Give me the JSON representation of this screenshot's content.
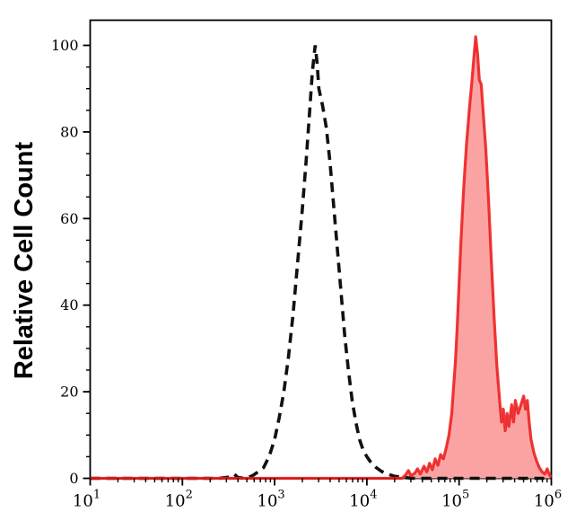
{
  "figure": {
    "background": "#ffffff",
    "description": "Flow cytometry overlay histogram with a black dashed control peak and a red filled sample peak"
  },
  "chart_data": {
    "type": "area",
    "subtype": "flow-cytometry-histogram",
    "title": "",
    "xlabel": "",
    "ylabel": "Relative Cell Count",
    "x_scale": "log10",
    "x_range_log10": [
      1,
      6
    ],
    "x_tick_base": "10",
    "x_tick_exponents": [
      1,
      2,
      3,
      4,
      5,
      6
    ],
    "x_tick_labels": [
      "10^1",
      "10^2",
      "10^3",
      "10^4",
      "10^5",
      "10^6"
    ],
    "y_range": [
      0,
      106
    ],
    "y_ticks": [
      0,
      20,
      40,
      60,
      80,
      100
    ],
    "y_minor_step": 5,
    "grid": false,
    "legend": "none",
    "frame": "full-box",
    "axis_color": "#000000",
    "series": [
      {
        "name": "control-dashed",
        "style": "dashed-line",
        "color": "#111111",
        "dash": [
          11,
          7
        ],
        "points": [
          [
            1.0,
            0
          ],
          [
            2.4,
            0
          ],
          [
            2.5,
            0.3
          ],
          [
            2.56,
            1.0
          ],
          [
            2.6,
            0.2
          ],
          [
            2.68,
            0
          ],
          [
            2.76,
            0.6
          ],
          [
            2.82,
            1.5
          ],
          [
            2.88,
            2.5
          ],
          [
            2.94,
            5
          ],
          [
            3.0,
            9
          ],
          [
            3.05,
            14
          ],
          [
            3.1,
            20
          ],
          [
            3.15,
            28
          ],
          [
            3.2,
            38
          ],
          [
            3.25,
            50
          ],
          [
            3.3,
            62
          ],
          [
            3.34,
            73
          ],
          [
            3.38,
            85
          ],
          [
            3.41,
            94
          ],
          [
            3.44,
            100
          ],
          [
            3.46,
            96
          ],
          [
            3.48,
            90
          ],
          [
            3.52,
            86
          ],
          [
            3.56,
            81
          ],
          [
            3.6,
            73
          ],
          [
            3.64,
            63
          ],
          [
            3.68,
            53
          ],
          [
            3.72,
            43
          ],
          [
            3.76,
            33
          ],
          [
            3.8,
            25
          ],
          [
            3.84,
            18
          ],
          [
            3.88,
            13
          ],
          [
            3.92,
            9
          ],
          [
            3.96,
            6.5
          ],
          [
            4.0,
            5
          ],
          [
            4.05,
            3.5
          ],
          [
            4.1,
            2.5
          ],
          [
            4.16,
            1.6
          ],
          [
            4.22,
            1.0
          ],
          [
            4.3,
            0.5
          ],
          [
            4.4,
            0.2
          ],
          [
            4.5,
            0
          ],
          [
            6.0,
            0
          ]
        ]
      },
      {
        "name": "sample-red-filled",
        "style": "filled-area",
        "stroke": "#ed1b1b",
        "fill": "#fba3a3",
        "points": [
          [
            1.0,
            0
          ],
          [
            4.38,
            0
          ],
          [
            4.42,
            0.8
          ],
          [
            4.45,
            1.8
          ],
          [
            4.48,
            0.6
          ],
          [
            4.52,
            1.2
          ],
          [
            4.55,
            2.2
          ],
          [
            4.58,
            1.0
          ],
          [
            4.62,
            2.8
          ],
          [
            4.65,
            1.5
          ],
          [
            4.68,
            3.5
          ],
          [
            4.71,
            2.0
          ],
          [
            4.74,
            4.5
          ],
          [
            4.77,
            3.0
          ],
          [
            4.8,
            5.5
          ],
          [
            4.83,
            4.5
          ],
          [
            4.86,
            7
          ],
          [
            4.89,
            10
          ],
          [
            4.92,
            15
          ],
          [
            4.94,
            21
          ],
          [
            4.96,
            27
          ],
          [
            4.98,
            35
          ],
          [
            5.0,
            45
          ],
          [
            5.02,
            55
          ],
          [
            5.05,
            67
          ],
          [
            5.08,
            77
          ],
          [
            5.11,
            85
          ],
          [
            5.14,
            92
          ],
          [
            5.16,
            97
          ],
          [
            5.18,
            102
          ],
          [
            5.2,
            98
          ],
          [
            5.22,
            92
          ],
          [
            5.24,
            91
          ],
          [
            5.26,
            85
          ],
          [
            5.29,
            76
          ],
          [
            5.32,
            64
          ],
          [
            5.35,
            50
          ],
          [
            5.38,
            37
          ],
          [
            5.41,
            26
          ],
          [
            5.44,
            18
          ],
          [
            5.46,
            13
          ],
          [
            5.48,
            16
          ],
          [
            5.5,
            11
          ],
          [
            5.52,
            15
          ],
          [
            5.54,
            12
          ],
          [
            5.57,
            17
          ],
          [
            5.59,
            13
          ],
          [
            5.61,
            18
          ],
          [
            5.64,
            15
          ],
          [
            5.67,
            17
          ],
          [
            5.7,
            19
          ],
          [
            5.72,
            16
          ],
          [
            5.74,
            18
          ],
          [
            5.76,
            13
          ],
          [
            5.78,
            9
          ],
          [
            5.81,
            6
          ],
          [
            5.84,
            4
          ],
          [
            5.87,
            2.5
          ],
          [
            5.9,
            1.5
          ],
          [
            5.93,
            1.0
          ],
          [
            5.955,
            2.2
          ],
          [
            5.98,
            0.8
          ],
          [
            6.0,
            0.3
          ]
        ]
      }
    ]
  }
}
